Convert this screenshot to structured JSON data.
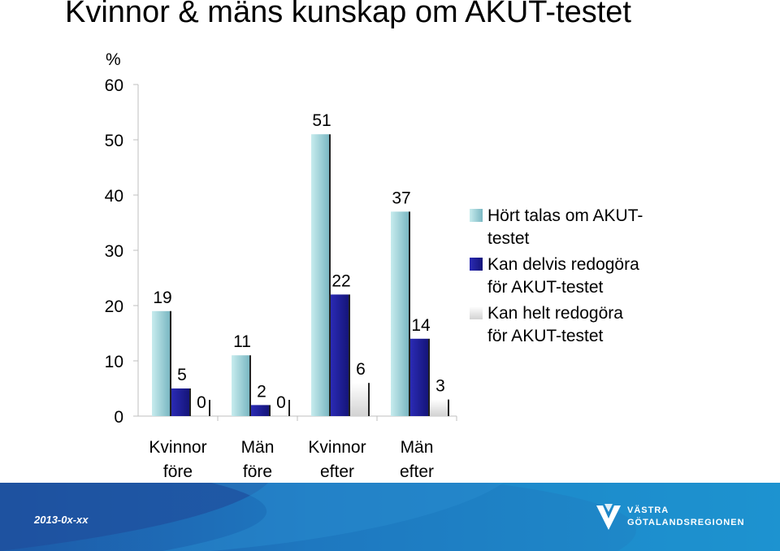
{
  "title": "Kvinnor & mäns kunskap om AKUT-testet",
  "chart_data": {
    "type": "bar",
    "ylabel": "%",
    "ylim": [
      0,
      60
    ],
    "yticks": [
      0,
      10,
      20,
      30,
      40,
      50,
      60
    ],
    "categories": [
      "Kvinnor\nföre",
      "Män\nföre",
      "Kvinnor\nefter",
      "Män\nefter"
    ],
    "category_lines": [
      [
        "Kvinnor",
        "före"
      ],
      [
        "Män",
        "före"
      ],
      [
        "Kvinnor",
        "efter"
      ],
      [
        "Män",
        "efter"
      ]
    ],
    "series": [
      {
        "name": "Hört talas om AKUT-testet",
        "legend_lines": [
          "Hört talas om AKUT-",
          "testet"
        ],
        "values": [
          19,
          11,
          51,
          37
        ],
        "color": "#9fd4dc"
      },
      {
        "name": "Kan delvis redogöra för AKUT-testet",
        "legend_lines": [
          "Kan delvis redogöra",
          "för AKUT-testet"
        ],
        "values": [
          5,
          2,
          22,
          14
        ],
        "color": "#1e1e96"
      },
      {
        "name": "Kan helt redogöra för AKUT-testet",
        "legend_lines": [
          "Kan helt redogöra",
          "för AKUT-testet"
        ],
        "values": [
          0,
          0,
          6,
          3
        ],
        "color": "#e6e6e6"
      }
    ],
    "data_labels": true,
    "legend_position": "right",
    "grid": false
  },
  "footer": {
    "date": "2013-0x-xx",
    "logo_line1": "VÄSTRA",
    "logo_line2": "GÖTALANDSREGIONEN"
  },
  "colors": {
    "footer_blue": "#1e78c0",
    "bar_light": "#9fd4dc",
    "bar_dark": "#1e1e96",
    "bar_white": "#e6e6e6"
  }
}
